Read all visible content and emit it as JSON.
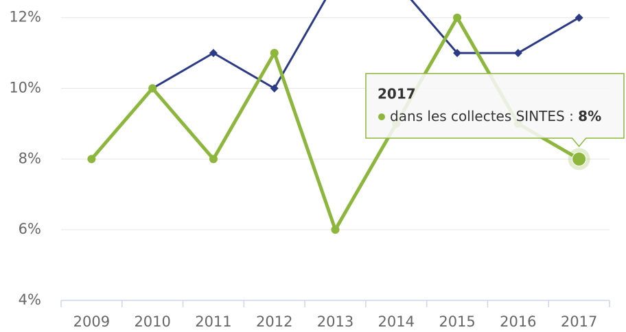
{
  "chart_data": {
    "type": "line",
    "categories": [
      "2009",
      "2010",
      "2011",
      "2012",
      "2013",
      "2014",
      "2015",
      "2016",
      "2017"
    ],
    "series": [
      {
        "name": "dans les collectes SINTES",
        "color": "#8cb63c",
        "values": [
          8,
          10,
          8,
          11,
          6,
          9,
          12,
          9,
          8
        ]
      },
      {
        "color": "#2b3a86",
        "values": [
          8,
          10,
          11,
          10,
          13,
          13,
          11,
          11,
          12
        ]
      }
    ],
    "ylim": [
      4,
      12.5
    ],
    "yticks": [
      {
        "value": 4,
        "label": "4%"
      },
      {
        "value": 6,
        "label": "6%"
      },
      {
        "value": 8,
        "label": "8%"
      },
      {
        "value": 10,
        "label": "10%"
      },
      {
        "value": 12,
        "label": "12%"
      }
    ],
    "grid": true,
    "tooltip": {
      "separator": " : ",
      "value_label": "8%"
    }
  }
}
